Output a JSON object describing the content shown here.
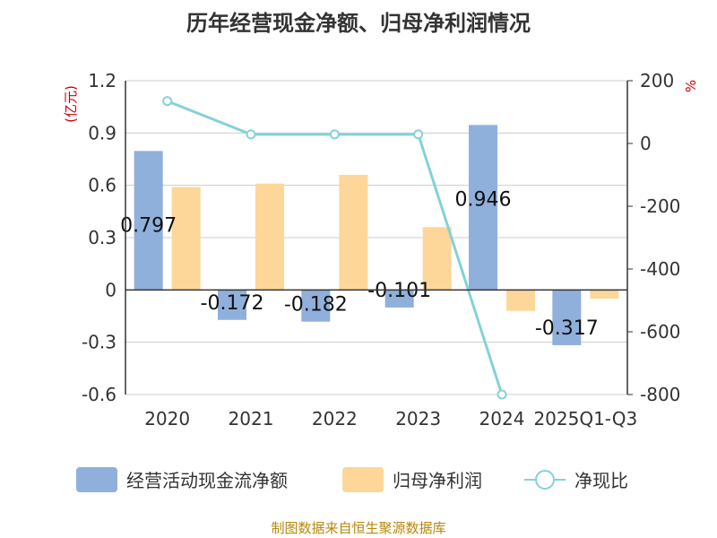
{
  "title": "历年经营现金净额、归母净利润情况",
  "source": "制图数据来自恒生聚源数据库",
  "chart_data": {
    "type": "bar",
    "categories": [
      "2020",
      "2021",
      "2022",
      "2023",
      "2024",
      "2025Q1-Q3"
    ],
    "series": [
      {
        "name": "经营活动现金流净额",
        "type": "bar",
        "axis": "left",
        "color": "#8eb0db",
        "values": [
          0.797,
          -0.172,
          -0.182,
          -0.101,
          0.946,
          -0.317
        ],
        "labels": [
          "0.797",
          "-0.172",
          "-0.182",
          "-0.101",
          "0.946",
          "-0.317"
        ]
      },
      {
        "name": "归母净利润",
        "type": "bar",
        "axis": "left",
        "color": "#fdd699",
        "values": [
          0.59,
          0.61,
          0.66,
          0.36,
          -0.12,
          -0.05
        ]
      },
      {
        "name": "净现比",
        "type": "line",
        "axis": "right",
        "color": "#84d2d6",
        "values": [
          135,
          29,
          29,
          29,
          -800,
          null
        ]
      }
    ],
    "left_axis": {
      "unit_label": "(亿元)",
      "ylim": [
        -0.6,
        1.2
      ],
      "ticks": [
        1.2,
        0.9,
        0.6,
        0.3,
        0,
        -0.3,
        -0.6
      ],
      "tick_labels": [
        "1.2",
        "0.9",
        "0.6",
        "0.3",
        "0",
        "-0.3",
        "-0.6"
      ]
    },
    "right_axis": {
      "unit_label": "%",
      "ylim": [
        -800,
        200
      ],
      "ticks": [
        200,
        0,
        -200,
        -400,
        -600,
        -800
      ],
      "tick_labels": [
        "200",
        "0",
        "-200",
        "-400",
        "-600",
        "-800"
      ]
    },
    "grid": true,
    "legend_position": "bottom",
    "colors": {
      "axis_unit": "#cc0000",
      "grid": "#cccccc",
      "text": "#333333"
    }
  }
}
